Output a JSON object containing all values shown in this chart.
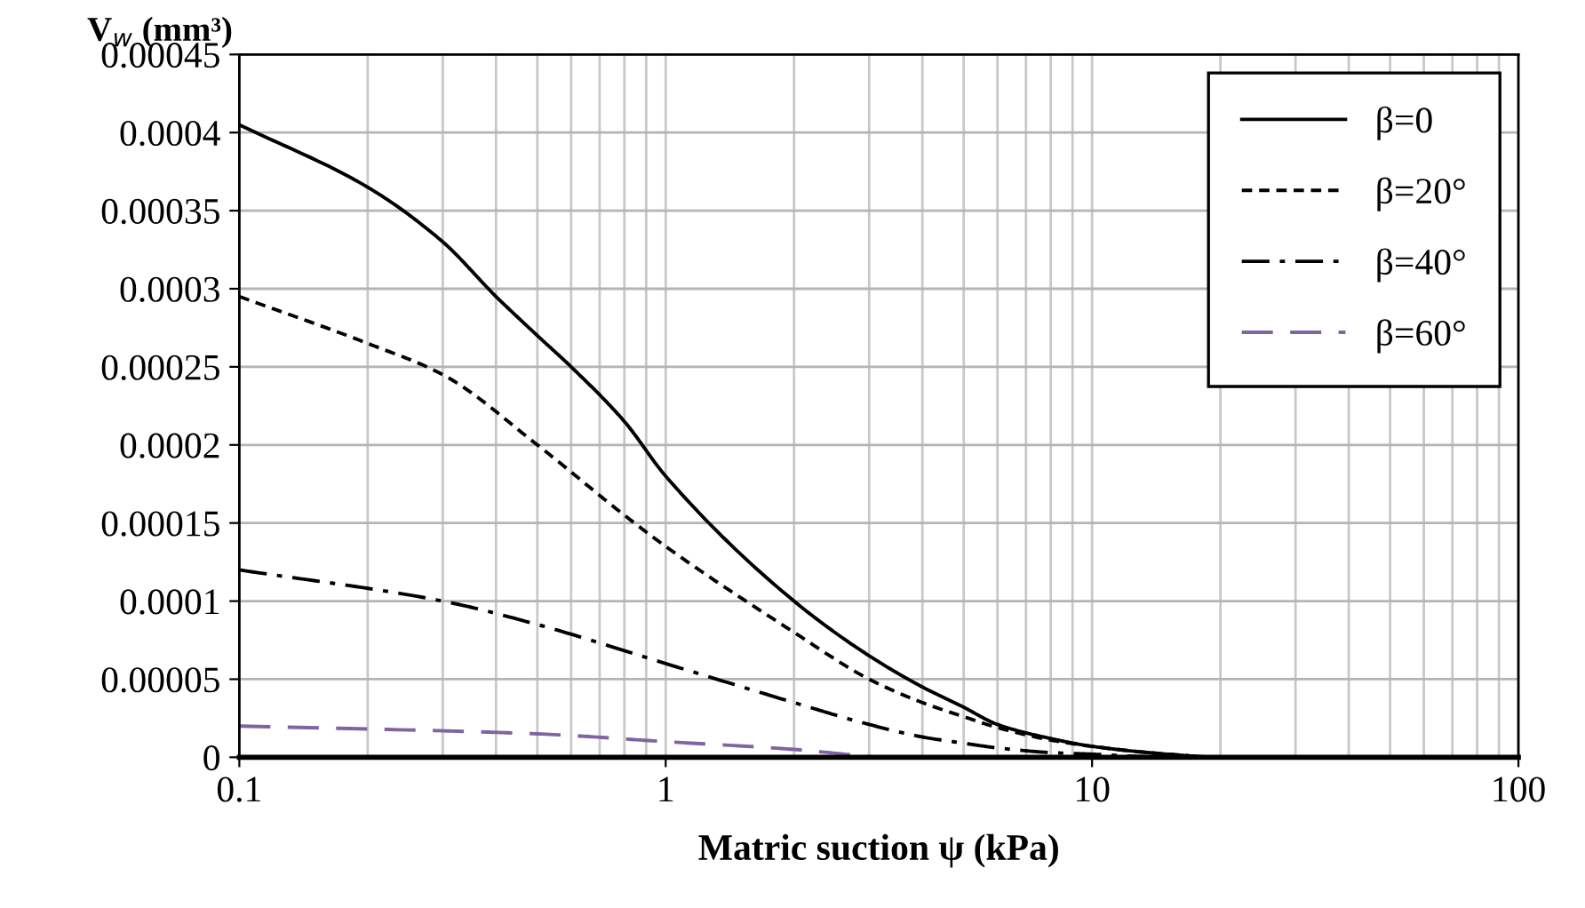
{
  "chart_data": {
    "type": "line",
    "xlabel": "Matric suction ψ (kPa)",
    "ylabel": "V$_{w}$ (mm³)",
    "log": "x",
    "xlim": [
      0.1,
      100
    ],
    "xticks": [
      0.1,
      1,
      10,
      100
    ],
    "ylim": [
      0,
      0.00045
    ],
    "yticks": [
      0,
      {
        "value": 5e-05,
        "label": "0.00005"
      },
      0.0001,
      0.00015,
      0.0002,
      0.00025,
      0.0003,
      0.00035,
      0.0004,
      0.00045
    ],
    "grid": true,
    "legend": "top right",
    "marker": "none",
    "series": [
      {
        "name": "β=0",
        "color": "#000000",
        "line_style": "solid",
        "x": [
          0.1,
          0.2,
          0.3,
          0.4,
          0.5,
          0.6,
          0.8,
          1,
          2,
          3,
          4,
          5,
          6,
          8,
          10,
          15,
          20,
          30
        ],
        "values": [
          0.000405,
          0.000365,
          0.00033,
          0.000295,
          0.00027,
          0.00025,
          0.000215,
          0.00018,
          0.0001,
          6.5e-05,
          4.5e-05,
          3.2e-05,
          2.1e-05,
          1.2e-05,
          7e-06,
          2e-06,
          0,
          0
        ]
      },
      {
        "name": "β=20°",
        "color": "#000000",
        "line_style": "dotted",
        "x": [
          0.1,
          0.2,
          0.3,
          0.5,
          0.8,
          1,
          2,
          3,
          4,
          5,
          6,
          8,
          10,
          15,
          20,
          30
        ],
        "values": [
          0.000295,
          0.000265,
          0.000245,
          0.0002,
          0.000155,
          0.000135,
          8e-05,
          5e-05,
          3.5e-05,
          2.6e-05,
          1.9e-05,
          1.1e-05,
          7e-06,
          2e-06,
          0,
          0
        ]
      },
      {
        "name": "β=40°",
        "color": "#000000",
        "line_style": "dashdot",
        "x": [
          0.1,
          0.3,
          0.5,
          1,
          2,
          3,
          4,
          5,
          6,
          8,
          10,
          15,
          20
        ],
        "values": [
          0.00012,
          0.0001,
          8.5e-05,
          6e-05,
          3.5e-05,
          2.1e-05,
          1.3e-05,
          9e-06,
          6e-06,
          3e-06,
          2e-06,
          0,
          0
        ]
      },
      {
        "name": "β=60°",
        "color": "#8064a2",
        "line_style": "dashed",
        "x": [
          0.1,
          0.5,
          1,
          2,
          3.1
        ],
        "values": [
          2e-05,
          1.5e-05,
          1e-05,
          5e-06,
          0
        ]
      }
    ]
  }
}
